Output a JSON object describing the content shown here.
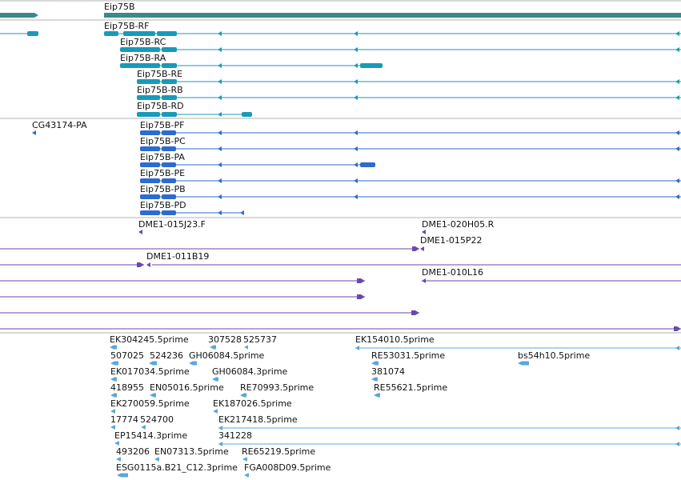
{
  "colors": {
    "gene": "#3a8a8a",
    "transcript": "#1a9ab8",
    "protein": "#2e6ad1",
    "clone": "#6a4aa8",
    "est": "#5aa8d8",
    "divider": "#b0b0b0"
  },
  "gene_track": {
    "name": "Eip75B"
  },
  "transcripts": [
    {
      "name": "Eip75B-RF"
    },
    {
      "name": "Eip75B-RC"
    },
    {
      "name": "Eip75B-RA"
    },
    {
      "name": "Eip75B-RE"
    },
    {
      "name": "Eip75B-RB"
    },
    {
      "name": "Eip75B-RD"
    }
  ],
  "proteins": [
    {
      "name": "CG43174-PA"
    },
    {
      "name": "Eip75B-PF"
    },
    {
      "name": "Eip75B-PC"
    },
    {
      "name": "Eip75B-PA"
    },
    {
      "name": "Eip75B-PE"
    },
    {
      "name": "Eip75B-PB"
    },
    {
      "name": "Eip75B-PD"
    }
  ],
  "clones": [
    {
      "name": "DME1-015J23.F"
    },
    {
      "name": "DME1-020H05.R"
    },
    {
      "name": "DME1-015P22"
    },
    {
      "name": "DME1-011B19"
    },
    {
      "name": "DME1-010L16"
    }
  ],
  "ests": [
    {
      "name": "EK304245.5prime"
    },
    {
      "name": "307528"
    },
    {
      "name": "525737"
    },
    {
      "name": "EK154010.5prime"
    },
    {
      "name": "507025"
    },
    {
      "name": "524236"
    },
    {
      "name": "GH06084.5prime"
    },
    {
      "name": "RE53031.5prime"
    },
    {
      "name": "bs54h10.5prime"
    },
    {
      "name": "EK017034.5prime"
    },
    {
      "name": "GH06084.3prime"
    },
    {
      "name": "381074"
    },
    {
      "name": "418955"
    },
    {
      "name": "EN05016.5prime"
    },
    {
      "name": "RE70993.5prime"
    },
    {
      "name": "RE55621.5prime"
    },
    {
      "name": "EK270059.5prime"
    },
    {
      "name": "EK187026.5prime"
    },
    {
      "name": "17774"
    },
    {
      "name": "524700"
    },
    {
      "name": "EK217418.5prime"
    },
    {
      "name": "EP15414.3prime"
    },
    {
      "name": "341228"
    },
    {
      "name": "493206"
    },
    {
      "name": "EN07313.5prime"
    },
    {
      "name": "RE65219.5prime"
    },
    {
      "name": "ESG0115a.B21_C12.3prime"
    },
    {
      "name": "FGA008D09.5prime"
    }
  ]
}
